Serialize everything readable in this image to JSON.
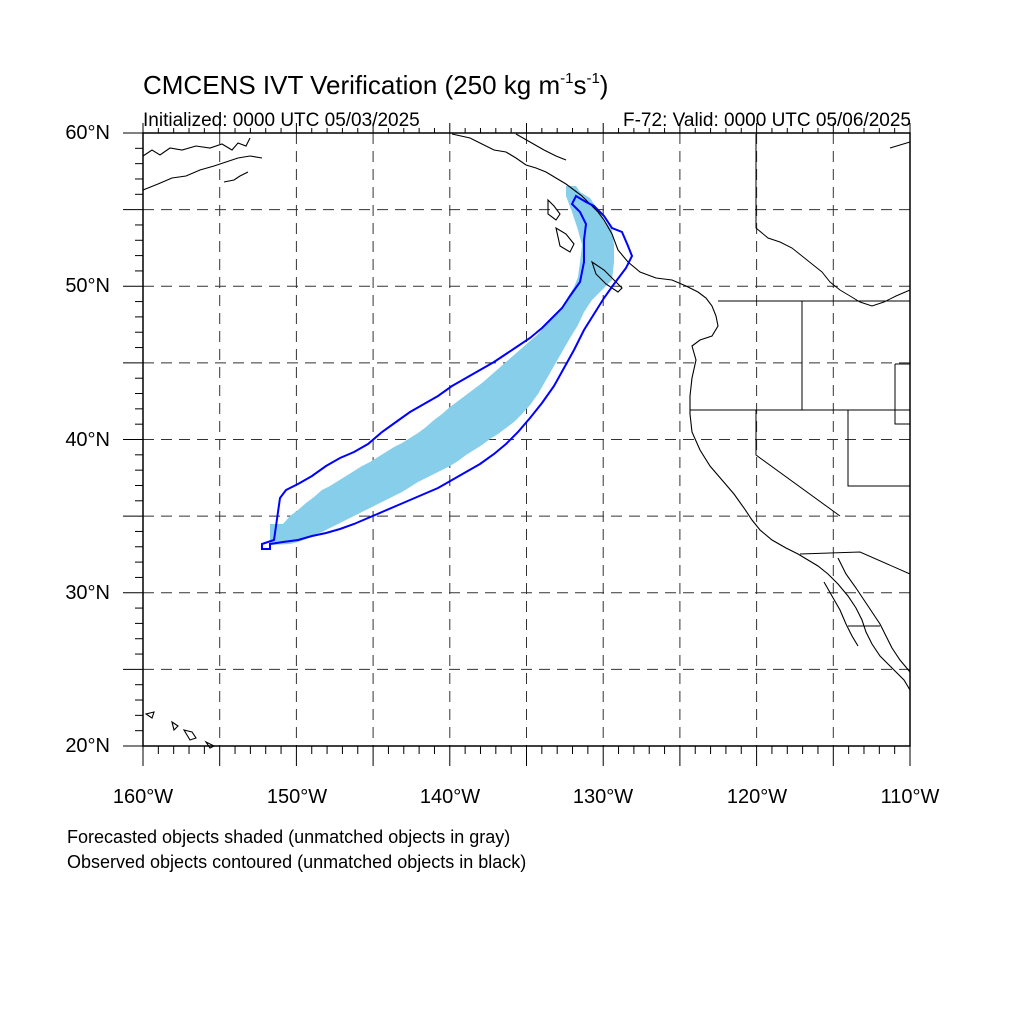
{
  "title": {
    "main_prefix": "CMCENS IVT Verification (250 kg m",
    "exp1": "-1",
    "mid": "s",
    "exp2": "-1",
    "suffix": ")"
  },
  "subtitle_left": "Initialized: 0000 UTC 05/03/2025",
  "subtitle_right": "F-72: Valid: 0000 UTC 05/06/2025",
  "lat_labels": [
    "60°N",
    "50°N",
    "40°N",
    "30°N",
    "20°N"
  ],
  "lon_labels": [
    "160°W",
    "150°W",
    "140°W",
    "130°W",
    "120°W",
    "110°W"
  ],
  "captions": [
    "Forecasted objects shaded (unmatched objects in gray)",
    "Observed objects contoured (unmatched objects in black)"
  ],
  "map": {
    "extent": {
      "lon": [
        -160,
        -110
      ],
      "lat": [
        20,
        60
      ]
    },
    "grid_spacing_deg": 5,
    "grid_style": "dashed",
    "forecast_fill_color": "#87ceeb",
    "observed_contour_color": "#0000ff"
  }
}
